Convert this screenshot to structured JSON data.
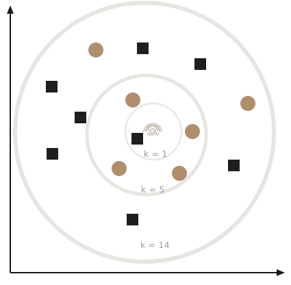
{
  "colors": {
    "axis": "#1a1a1a",
    "ring_outer": "#e6e5e0",
    "ring_middle": "#e6e5e0",
    "ring_inner": "#e8e7e3",
    "circle_class": "#b08e6c",
    "square_class": "#1e1e1e",
    "label": "#9a9a9a",
    "query_point": "#9a8e80"
  },
  "icons": {
    "query_point": "fingerprint-icon"
  },
  "rings": [
    {
      "label": "k = 1"
    },
    {
      "label": "k = 5"
    },
    {
      "label": "k = 14"
    }
  ]
}
